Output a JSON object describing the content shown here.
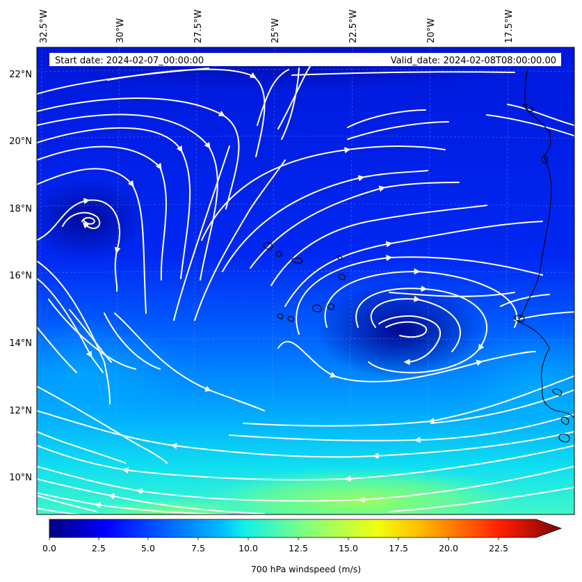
{
  "header": {
    "start_date": "Start date: 2024-02-07_00:00:00",
    "valid_date": "Valid_date: 2024-02-08T08:00:00.00"
  },
  "axes": {
    "lon_labels": [
      "32.5°W",
      "30°W",
      "27.5°W",
      "25°W",
      "22.5°W",
      "20°W",
      "17.5°W"
    ],
    "lat_labels": [
      "22°N",
      "20°N",
      "18°N",
      "16°N",
      "14°N",
      "12°N",
      "10°N"
    ]
  },
  "colorbar": {
    "label": "700 hPa windspeed (m/s)",
    "ticks": [
      "0.0",
      "2.5",
      "5.0",
      "7.5",
      "10.0",
      "12.5",
      "15.0",
      "17.5",
      "20.0",
      "22.5"
    ],
    "colormap": "jet",
    "extend": "max"
  },
  "map": {
    "field": "700 hPa windspeed",
    "overlay": "streamlines",
    "streamline_color": "#ffffff",
    "coastline_color": "#000000"
  }
}
